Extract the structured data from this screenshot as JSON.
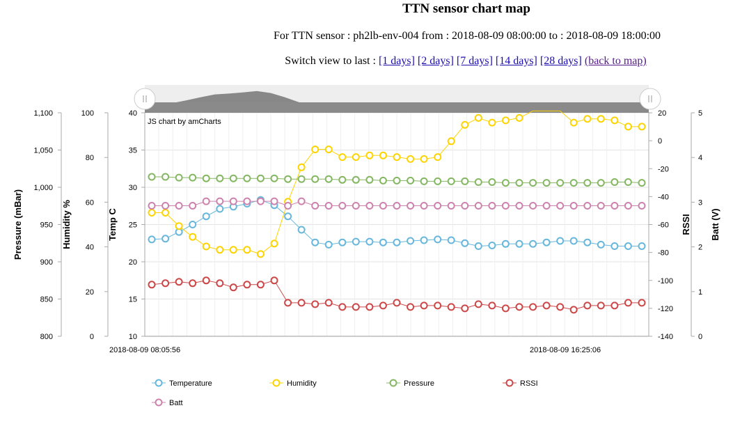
{
  "page": {
    "title": "TTN sensor chart map",
    "subtitle": "For TTN sensor : ph2lb-env-004 from : 2018-08-09 08:00:00 to : 2018-08-09 18:00:00",
    "switch_prefix": "Switch view to last :",
    "links": [
      "[1 days]",
      "[2 days]",
      "[7 days]",
      "[14 days]",
      "[28 days]",
      "(back to map)"
    ]
  },
  "chart_data": {
    "type": "line",
    "credit": "JS chart by amCharts",
    "x_start_label": "2018-08-09 08:05:56",
    "x_end_label": "2018-08-09 16:25:06",
    "x_count": 37,
    "axes": {
      "pressure": {
        "title": "Pressure (mBar)",
        "min": 800,
        "max": 1100,
        "ticks": [
          "800",
          "850",
          "900",
          "950",
          "1,000",
          "1,050",
          "1,100"
        ],
        "tick_values": [
          800,
          850,
          900,
          950,
          1000,
          1050,
          1100
        ]
      },
      "humidity": {
        "title": "Humidity %",
        "min": 0,
        "max": 100,
        "ticks": [
          "0",
          "20",
          "40",
          "60",
          "80",
          "100"
        ],
        "tick_values": [
          0,
          20,
          40,
          60,
          80,
          100
        ]
      },
      "temp": {
        "title": "Temp C",
        "min": 10,
        "max": 40,
        "ticks": [
          "10",
          "15",
          "20",
          "25",
          "30",
          "35",
          "40"
        ],
        "tick_values": [
          10,
          15,
          20,
          25,
          30,
          35,
          40
        ]
      },
      "rssi": {
        "title": "RSSI",
        "min": -140,
        "max": 20,
        "ticks": [
          "-140",
          "-120",
          "-100",
          "-80",
          "-60",
          "-40",
          "-20",
          "0",
          "20"
        ],
        "tick_values": [
          -140,
          -120,
          -100,
          -80,
          -60,
          -40,
          -20,
          0,
          20
        ]
      },
      "batt": {
        "title": "Batt (V)",
        "min": 0,
        "max": 5,
        "ticks": [
          "0",
          "1",
          "2",
          "3",
          "4",
          "5"
        ],
        "tick_values": [
          0,
          1,
          2,
          3,
          4,
          5
        ]
      }
    },
    "series": [
      {
        "name": "Temperature",
        "axis": "temp",
        "color": "#67b7dc",
        "values": [
          23.0,
          23.1,
          24.0,
          25.0,
          26.1,
          27.1,
          27.4,
          27.8,
          28.3,
          27.6,
          26.1,
          24.3,
          22.6,
          22.3,
          22.6,
          22.7,
          22.7,
          22.6,
          22.6,
          22.8,
          22.9,
          23.0,
          22.9,
          22.5,
          22.1,
          22.2,
          22.4,
          22.4,
          22.4,
          22.6,
          22.8,
          22.8,
          22.6,
          22.3,
          22.1,
          22.1,
          22.1
        ]
      },
      {
        "name": "Humidity",
        "axis": "humidity",
        "color": "#fdd400",
        "values": [
          55.3,
          55.3,
          49.3,
          44.5,
          40.2,
          38.7,
          38.7,
          38.7,
          36.8,
          41.5,
          60.2,
          75.6,
          83.6,
          83.6,
          80.2,
          80.2,
          80.9,
          80.9,
          80.2,
          79.3,
          79.3,
          80.2,
          87.3,
          94.6,
          97.7,
          95.6,
          96.6,
          97.7,
          100.8,
          100.8,
          100.8,
          95.6,
          97.3,
          97.3,
          96.6,
          93.8,
          93.8
        ]
      },
      {
        "name": "Pressure",
        "axis": "pressure",
        "color": "#84b761",
        "values": [
          1014,
          1014,
          1013,
          1013,
          1012,
          1012,
          1012,
          1012,
          1012,
          1012,
          1011,
          1011,
          1011,
          1011,
          1010,
          1010,
          1010,
          1009,
          1009,
          1009,
          1008,
          1008,
          1008,
          1008,
          1007,
          1007,
          1006,
          1006,
          1006,
          1006,
          1006,
          1006,
          1006,
          1006,
          1007,
          1007,
          1006
        ]
      },
      {
        "name": "RSSI",
        "axis": "rssi",
        "color": "#cc4748",
        "values": [
          -103,
          -102,
          -101,
          -102,
          -100,
          -102,
          -105,
          -103,
          -103,
          -100,
          -116,
          -116,
          -117,
          -116,
          -119,
          -119,
          -119,
          -118,
          -116,
          -119,
          -118,
          -118,
          -119,
          -120,
          -117,
          -118,
          -120,
          -119,
          -119,
          -118,
          -119,
          -121,
          -118,
          -118,
          -118,
          -116,
          -116
        ]
      },
      {
        "name": "Batt",
        "axis": "batt",
        "color": "#cd82ad",
        "values": [
          2.92,
          2.92,
          2.92,
          2.92,
          3.02,
          3.02,
          3.02,
          3.02,
          3.02,
          3.02,
          2.92,
          3.02,
          2.92,
          2.92,
          2.92,
          2.92,
          2.92,
          2.92,
          2.92,
          2.92,
          2.92,
          2.92,
          2.92,
          2.92,
          2.92,
          2.92,
          2.92,
          2.92,
          2.92,
          2.92,
          2.92,
          2.92,
          2.92,
          2.92,
          2.92,
          2.92,
          2.92
        ]
      }
    ],
    "legend": [
      "Temperature",
      "Humidity",
      "Pressure",
      "RSSI",
      "Batt"
    ],
    "legend_position": "bottom",
    "scrollbar_labels_hint": "overview"
  }
}
